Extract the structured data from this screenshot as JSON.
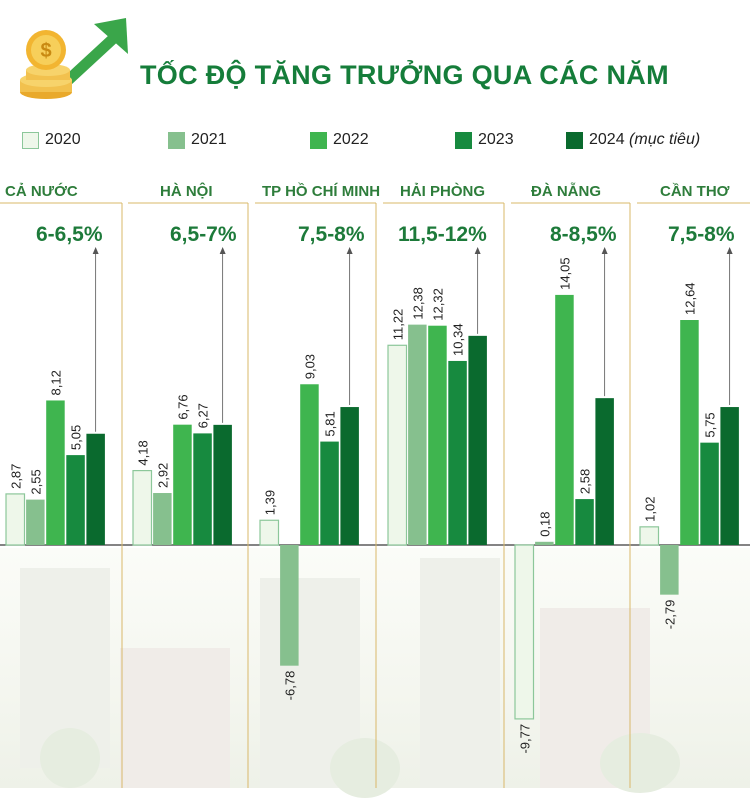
{
  "header": {
    "title": "TỐC ĐỘ TĂNG TRƯỞNG QUA CÁC NĂM"
  },
  "logo": {
    "icon": "dollar-coins-arrow-icon"
  },
  "legend": [
    {
      "label": "2020",
      "color": "#eef7ea",
      "border": "#8cc79a"
    },
    {
      "label": "2021",
      "color": "#86c08e",
      "border": "#86c08e"
    },
    {
      "label": "2022",
      "color": "#3fb54f",
      "border": "#3fb54f"
    },
    {
      "label": "2023",
      "color": "#178a3f",
      "border": "#178a3f"
    },
    {
      "label": "2024",
      "label_suffix": "(mục tiêu)",
      "color": "#0a6a2e",
      "border": "#0a6a2e"
    }
  ],
  "chart_data": {
    "type": "bar",
    "title": "TỐC ĐỘ TĂNG TRƯỞNG QUA CÁC NĂM",
    "series_years": [
      "2020",
      "2021",
      "2022",
      "2023",
      "2024 (mục tiêu)"
    ],
    "groups": [
      {
        "name": "CẢ NƯỚC",
        "target": "6-6,5%",
        "values": [
          2.87,
          2.55,
          8.12,
          5.05,
          6.25
        ],
        "labels": [
          "2,87",
          "2,55",
          "8,12",
          "5,05",
          ""
        ]
      },
      {
        "name": "HÀ NỘI",
        "target": "6,5-7%",
        "values": [
          4.18,
          2.92,
          6.76,
          6.27,
          6.75
        ],
        "labels": [
          "4,18",
          "2,92",
          "6,76",
          "6,27",
          ""
        ]
      },
      {
        "name": "TP HỒ CHÍ MINH",
        "target": "7,5-8%",
        "values": [
          1.39,
          -6.78,
          9.03,
          5.81,
          7.75
        ],
        "labels": [
          "1,39",
          "-6,78",
          "9,03",
          "5,81",
          ""
        ]
      },
      {
        "name": "HẢI PHÒNG",
        "target": "11,5-12%",
        "values": [
          11.22,
          12.38,
          12.32,
          10.34,
          11.75
        ],
        "labels": [
          "11,22",
          "12,38",
          "12,32",
          "10,34",
          ""
        ]
      },
      {
        "name": "ĐÀ NẴNG",
        "target": "8-8,5%",
        "values": [
          -9.77,
          0.18,
          14.05,
          2.58,
          8.25
        ],
        "labels": [
          "-9,77",
          "0,18",
          "14,05",
          "2,58",
          ""
        ]
      },
      {
        "name": "CẦN THƠ",
        "target": "7,5-8%",
        "values": [
          1.02,
          -2.79,
          12.64,
          5.75,
          7.75
        ],
        "labels": [
          "1,02",
          "-2,79",
          "12,64",
          "5,75",
          ""
        ]
      }
    ],
    "ylim": [
      -10,
      14.5
    ],
    "legend_position": "top",
    "grid": false
  }
}
